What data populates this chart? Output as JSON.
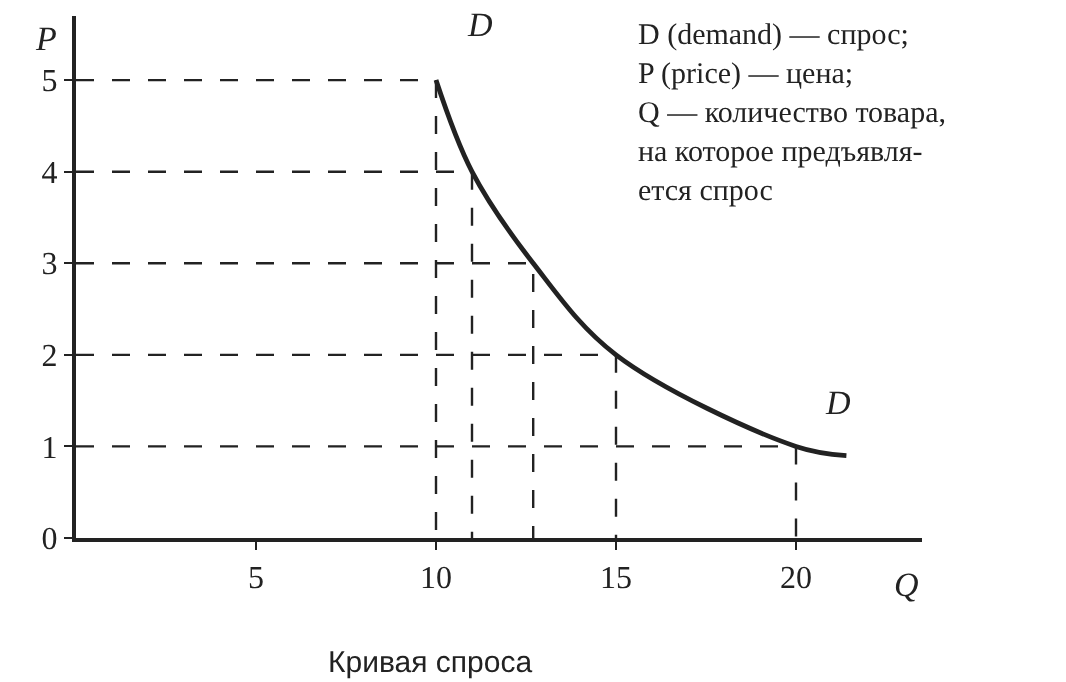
{
  "chart_data": {
    "type": "line",
    "xlabel": "Q",
    "ylabel": "P",
    "xlim": [
      0,
      23.5
    ],
    "ylim": [
      0,
      5.7
    ],
    "xticks": [
      5,
      10,
      15,
      20
    ],
    "yticks": [
      0,
      1,
      2,
      3,
      4,
      5
    ],
    "grid": false,
    "legend": false,
    "marker": "none",
    "series": [
      {
        "name": "D",
        "color": "#222222",
        "x": [
          10,
          11,
          12.7,
          15,
          20,
          21.4
        ],
        "values": [
          5,
          4,
          3,
          2,
          1,
          0.9
        ]
      },
      {
        "type": "line",
        "line_style": "dashed",
        "color": "#222222",
        "x": [
          0,
          10,
          10,
          null,
          0,
          11,
          11,
          null,
          0,
          12.7,
          12.7,
          null,
          0,
          15,
          15,
          null,
          0,
          20,
          20
        ],
        "values": [
          5,
          5,
          0,
          null,
          4,
          4,
          0,
          null,
          3,
          3,
          0,
          null,
          2,
          2,
          0,
          null,
          1,
          1,
          0
        ]
      }
    ],
    "annotations": [
      "D (demand) — спрос;\nP (price) — цена;\nQ — количество товара,\nна которое предъявля-\nется спрос",
      "Кривая спроса"
    ]
  }
}
